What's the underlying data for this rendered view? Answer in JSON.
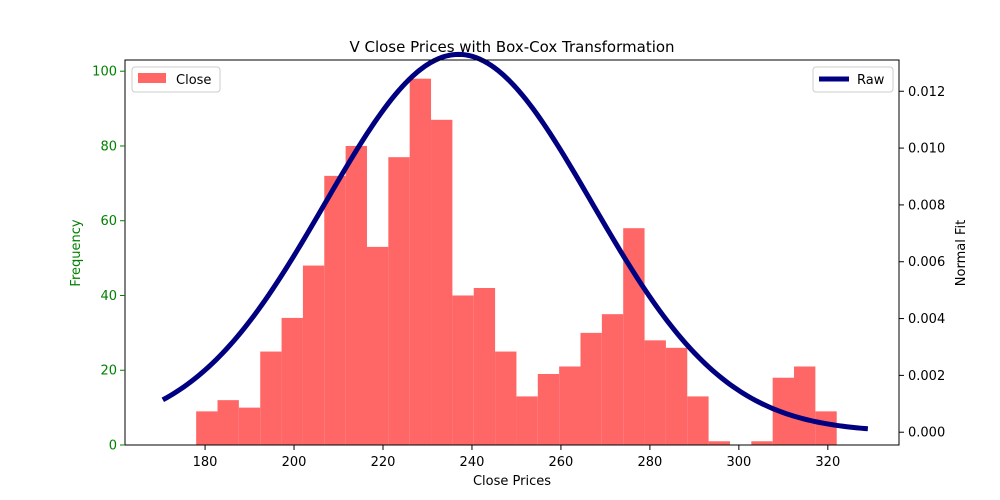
{
  "chart_data": {
    "type": "bar",
    "title": "V Close Prices with Box-Cox Transformation",
    "xlabel": "Close Prices",
    "ylabel": "Frequency",
    "y2label": "Normal Fit",
    "xlim": [
      162,
      336
    ],
    "ylim": [
      0,
      103
    ],
    "y2lim": [
      -0.00045,
      0.0131
    ],
    "xticks": [
      180,
      200,
      220,
      240,
      260,
      280,
      300,
      320
    ],
    "yticks": [
      0,
      20,
      40,
      60,
      80,
      100
    ],
    "y2ticks": [
      "0.000",
      "0.002",
      "0.004",
      "0.006",
      "0.008",
      "0.010",
      "0.012"
    ],
    "series": [
      {
        "name": "Close",
        "type": "histogram",
        "color": "#ff6666",
        "bin_start": 178,
        "bin_width": 4.8,
        "values": [
          9,
          12,
          10,
          25,
          34,
          48,
          72,
          80,
          53,
          77,
          98,
          87,
          40,
          42,
          25,
          13,
          19,
          21,
          30,
          35,
          58,
          28,
          26,
          13,
          1,
          0,
          1,
          18,
          21,
          9
        ]
      },
      {
        "name": "Raw",
        "type": "line",
        "color": "#000080",
        "axis": "right",
        "distribution": "normal",
        "mean": 237,
        "std": 30,
        "x_range": [
          170.5,
          329
        ]
      }
    ],
    "legend": {
      "left": "top-left",
      "right": "top-right"
    },
    "colors": {
      "left_axis": "#008000",
      "right_axis": "#000000"
    }
  }
}
